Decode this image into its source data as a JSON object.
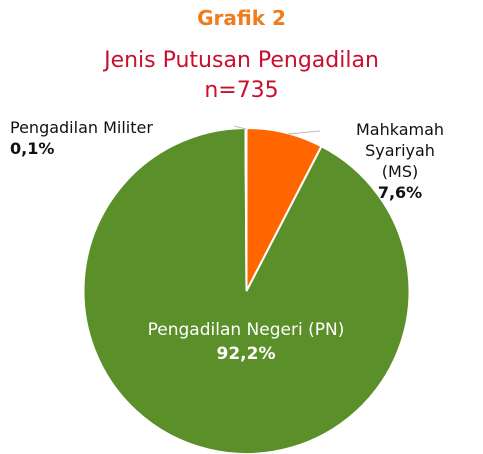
{
  "chart_data": {
    "type": "pie",
    "title": "Grafik 2",
    "subtitle": "Jenis Putusan Pengadilan",
    "annotation": "n=735",
    "categories": [
      "Mahkamah Syariyah (MS)",
      "Pengadilan Negeri (PN)",
      "Pengadilan Militer"
    ],
    "values": [
      7.6,
      92.2,
      0.1
    ],
    "value_labels": [
      "7,6%",
      "92,2%",
      "0,1%"
    ],
    "colors": [
      "#ff6600",
      "#5b8f2a",
      "#a0a0a0"
    ]
  }
}
